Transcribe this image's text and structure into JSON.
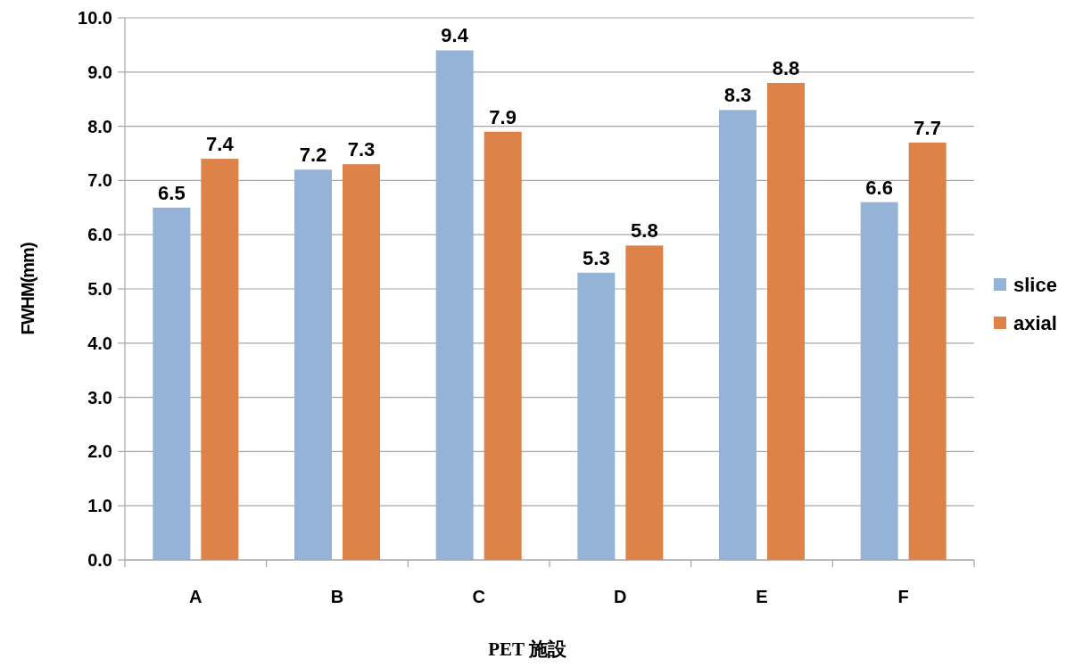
{
  "chart_data": {
    "type": "bar",
    "xlabel": "PET 施設",
    "ylabel": "FWHM(mm)",
    "categories": [
      "A",
      "B",
      "C",
      "D",
      "E",
      "F"
    ],
    "series": [
      {
        "name": "slice",
        "color": "#95b3d7",
        "values": [
          6.5,
          7.2,
          9.4,
          5.3,
          8.3,
          6.6
        ]
      },
      {
        "name": "axial",
        "color": "#dd8248",
        "values": [
          7.4,
          7.3,
          7.9,
          5.8,
          8.8,
          7.7
        ]
      }
    ],
    "ylim": [
      0,
      10
    ],
    "yticks": [
      {
        "value": 0,
        "label": "0.0"
      },
      {
        "value": 1,
        "label": "1.0"
      },
      {
        "value": 2,
        "label": "2.0"
      },
      {
        "value": 3,
        "label": "3.0"
      },
      {
        "value": 4,
        "label": "4.0"
      },
      {
        "value": 5,
        "label": "5.0"
      },
      {
        "value": 6,
        "label": "6.0"
      },
      {
        "value": 7,
        "label": "7.0"
      },
      {
        "value": 8,
        "label": "8.0"
      },
      {
        "value": 9,
        "label": "9.0"
      },
      {
        "value": 10,
        "label": "10.0"
      }
    ],
    "grid": "y",
    "data_labels": true,
    "legend": "right"
  }
}
